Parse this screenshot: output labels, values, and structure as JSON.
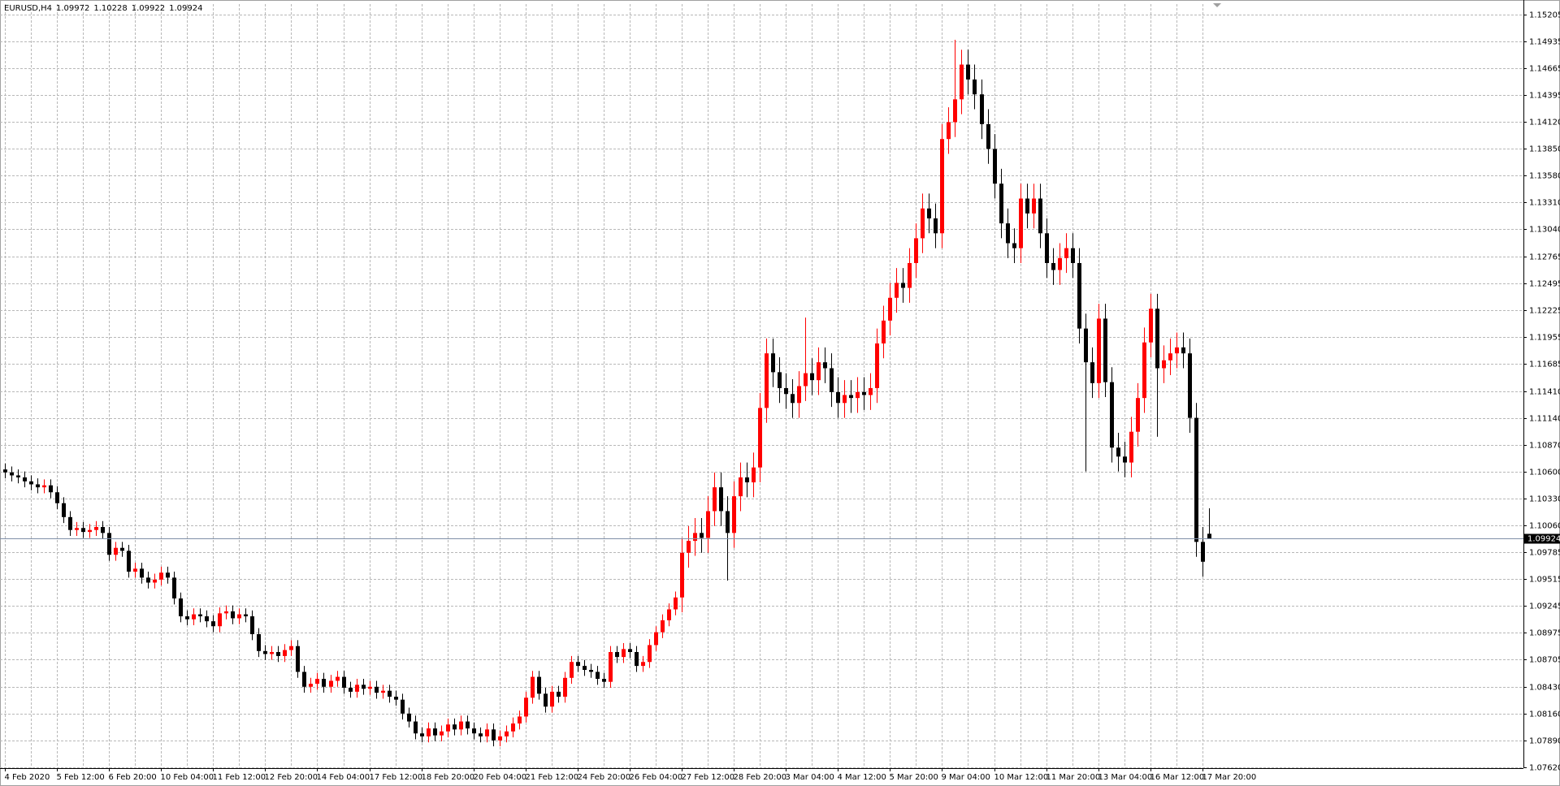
{
  "chart_data": {
    "type": "candlestick",
    "title": "EURUSD,H4",
    "categories": [
      "4 Feb 2020",
      null,
      null,
      null,
      null,
      null,
      null,
      null,
      "5 Feb 12:00",
      null,
      null,
      null,
      null,
      null,
      null,
      null,
      "6 Feb 20:00",
      null,
      null,
      null,
      null,
      null,
      null,
      null,
      "10 Feb 04:00",
      null,
      null,
      null,
      null,
      null,
      null,
      null,
      "11 Feb 12:00",
      null,
      null,
      null,
      null,
      null,
      null,
      null,
      "12 Feb 20:00",
      null,
      null,
      null,
      null,
      null,
      null,
      null,
      "14 Feb 04:00",
      null,
      null,
      null,
      null,
      null,
      null,
      null,
      "17 Feb 12:00",
      null,
      null,
      null,
      null,
      null,
      null,
      null,
      "18 Feb 20:00",
      null,
      null,
      null,
      null,
      null,
      null,
      null,
      "20 Feb 04:00",
      null,
      null,
      null,
      null,
      null,
      null,
      null,
      "21 Feb 12:00",
      null,
      null,
      null,
      null,
      null,
      null,
      null,
      "24 Feb 20:00",
      null,
      null,
      null,
      null,
      null,
      null,
      null,
      "26 Feb 04:00",
      null,
      null,
      null,
      null,
      null,
      null,
      null,
      "27 Feb 12:00",
      null,
      null,
      null,
      null,
      null,
      null,
      null,
      "28 Feb 20:00",
      null,
      null,
      null,
      null,
      null,
      null,
      null,
      "3 Mar 04:00",
      null,
      null,
      null,
      null,
      null,
      null,
      null,
      "4 Mar 12:00",
      null,
      null,
      null,
      null,
      null,
      null,
      null,
      "5 Mar 20:00",
      null,
      null,
      null,
      null,
      null,
      null,
      null,
      "9 Mar 04:00",
      null,
      null,
      null,
      null,
      null,
      null,
      null,
      "10 Mar 12:00",
      null,
      null,
      null,
      null,
      null,
      null,
      null,
      "11 Mar 20:00",
      null,
      null,
      null,
      null,
      null,
      null,
      null,
      "13 Mar 04:00",
      null,
      null,
      null,
      null,
      null,
      null,
      null,
      "16 Mar 12:00",
      null,
      null,
      null,
      null,
      null,
      null,
      null,
      "17 Mar 20:00",
      null
    ],
    "open": [
      1.1062,
      1.1059,
      1.1056,
      1.1054,
      1.105,
      1.1047,
      1.1044,
      1.1046,
      1.1039,
      1.1028,
      1.1014,
      1.1001,
      1.1003,
      1.0999,
      1.1001,
      1.1004,
      1.0998,
      1.0976,
      1.0983,
      1.098,
      1.0959,
      1.0962,
      1.0953,
      1.0948,
      1.0951,
      1.0958,
      1.0953,
      1.0932,
      1.0914,
      1.0911,
      1.0916,
      1.0914,
      1.0909,
      1.0904,
      1.0917,
      1.0919,
      1.0912,
      1.0916,
      1.0914,
      1.0896,
      1.0879,
      1.0876,
      1.0878,
      1.0874,
      1.088,
      1.0884,
      1.0858,
      1.0843,
      1.0846,
      1.0851,
      1.0843,
      1.0849,
      1.0853,
      1.0842,
      1.0838,
      1.0845,
      1.0841,
      1.0843,
      1.0837,
      1.0839,
      1.0833,
      1.083,
      1.0816,
      1.0808,
      1.0796,
      1.0793,
      1.0801,
      1.0794,
      1.0798,
      1.0805,
      1.08,
      1.0808,
      1.0801,
      1.0796,
      1.0793,
      1.08,
      1.0789,
      1.0793,
      1.0798,
      1.0806,
      1.0813,
      1.0832,
      1.0853,
      1.0836,
      1.0823,
      1.0838,
      1.0833,
      1.0852,
      1.0868,
      1.0864,
      1.086,
      1.0858,
      1.0851,
      1.0848,
      1.0878,
      1.0873,
      1.0881,
      1.0878,
      1.0864,
      1.0868,
      1.0885,
      1.0898,
      1.091,
      1.0921,
      1.0933,
      1.0978,
      1.099,
      1.0998,
      1.0993,
      1.102,
      1.1044,
      1.102,
      1.0998,
      1.1035,
      1.1054,
      1.1049,
      1.1064,
      1.1124,
      1.1179,
      1.116,
      1.1144,
      1.1138,
      1.1129,
      1.1146,
      1.1159,
      1.1152,
      1.117,
      1.1164,
      1.114,
      1.1129,
      1.1137,
      1.1134,
      1.114,
      1.1137,
      1.1144,
      1.1189,
      1.1212,
      1.1235,
      1.125,
      1.1245,
      1.127,
      1.1295,
      1.1325,
      1.1315,
      1.13,
      1.1395,
      1.1412,
      1.1435,
      1.147,
      1.1455,
      1.144,
      1.141,
      1.1385,
      1.135,
      1.131,
      1.129,
      1.1285,
      1.1335,
      1.132,
      1.1335,
      1.13,
      1.127,
      1.1263,
      1.1275,
      1.1285,
      1.127,
      1.1204,
      1.117,
      1.1149,
      1.1214,
      1.115,
      1.1084,
      1.1075,
      1.1069,
      1.11,
      1.1134,
      1.119,
      1.1224,
      1.1164,
      1.1172,
      1.1179,
      1.1185,
      1.1179,
      1.1114,
      1.0989,
      1.09972
    ],
    "high": [
      1.1068,
      1.1065,
      1.1062,
      1.106,
      1.1056,
      1.1053,
      1.1052,
      1.1052,
      1.1045,
      1.1034,
      1.102,
      1.1009,
      1.1009,
      1.1007,
      1.101,
      1.101,
      1.1004,
      1.0989,
      1.0989,
      1.0986,
      1.0968,
      1.0968,
      1.0959,
      1.0957,
      1.0964,
      1.0964,
      1.0959,
      1.0938,
      1.092,
      1.0922,
      1.0922,
      1.092,
      1.0915,
      1.0923,
      1.0925,
      1.0925,
      1.0922,
      1.0922,
      1.092,
      1.0902,
      1.0885,
      1.0884,
      1.0884,
      1.0886,
      1.089,
      1.089,
      1.0864,
      1.0852,
      1.0857,
      1.0857,
      1.0855,
      1.0859,
      1.0859,
      1.0848,
      1.0851,
      1.0851,
      1.0849,
      1.0849,
      1.0845,
      1.0845,
      1.0839,
      1.0836,
      1.0822,
      1.0814,
      1.0802,
      1.0807,
      1.0807,
      1.0804,
      1.0811,
      1.0811,
      1.0814,
      1.0814,
      1.0807,
      1.0802,
      1.0806,
      1.0806,
      1.0799,
      1.0804,
      1.0812,
      1.0819,
      1.0838,
      1.0859,
      1.0859,
      1.0842,
      1.0844,
      1.0844,
      1.0858,
      1.0874,
      1.0874,
      1.087,
      1.0866,
      1.0864,
      1.0857,
      1.0884,
      1.0884,
      1.0887,
      1.0887,
      1.0884,
      1.0874,
      1.0891,
      1.0904,
      1.0916,
      1.0927,
      1.0939,
      1.0993,
      1.1005,
      1.1013,
      1.1013,
      1.1035,
      1.1059,
      1.1059,
      1.1035,
      1.105,
      1.1069,
      1.1069,
      1.1079,
      1.1139,
      1.1194,
      1.1194,
      1.1175,
      1.1159,
      1.1153,
      1.1161,
      1.1215,
      1.1174,
      1.1185,
      1.1185,
      1.1179,
      1.1155,
      1.1152,
      1.1152,
      1.1155,
      1.1155,
      1.1159,
      1.1204,
      1.1227,
      1.125,
      1.1265,
      1.1265,
      1.1285,
      1.131,
      1.134,
      1.134,
      1.133,
      1.141,
      1.1427,
      1.1495,
      1.1485,
      1.1485,
      1.147,
      1.1455,
      1.1425,
      1.14,
      1.1365,
      1.1325,
      1.1305,
      1.135,
      1.135,
      1.135,
      1.135,
      1.1315,
      1.1285,
      1.129,
      1.13,
      1.13,
      1.1285,
      1.1219,
      1.1185,
      1.1229,
      1.1229,
      1.1165,
      1.1099,
      1.109,
      1.1115,
      1.1149,
      1.1205,
      1.1239,
      1.1239,
      1.1187,
      1.1194,
      1.12,
      1.12,
      1.1194,
      1.1129,
      1.1004,
      1.10228
    ],
    "low": [
      1.1053,
      1.105,
      1.1048,
      1.1044,
      1.1041,
      1.1038,
      1.1038,
      1.1033,
      1.1022,
      1.1008,
      1.0995,
      1.0995,
      1.0993,
      1.0993,
      1.0995,
      1.0992,
      1.097,
      1.097,
      1.0974,
      1.0953,
      1.0953,
      1.0947,
      1.0942,
      1.0942,
      1.0945,
      1.0947,
      1.0926,
      1.0908,
      1.0905,
      1.0905,
      1.0908,
      1.0903,
      1.0898,
      1.0898,
      1.0911,
      1.0906,
      1.0906,
      1.0908,
      1.089,
      1.0873,
      1.087,
      1.087,
      1.0868,
      1.0868,
      1.0874,
      1.0852,
      1.0837,
      1.0837,
      1.084,
      1.0837,
      1.0837,
      1.0843,
      1.0836,
      1.0832,
      1.0832,
      1.0835,
      1.0835,
      1.0831,
      1.0831,
      1.0827,
      1.0824,
      1.081,
      1.0802,
      1.079,
      1.0787,
      1.0787,
      1.0788,
      1.0788,
      1.0792,
      1.0794,
      1.0794,
      1.0795,
      1.079,
      1.0787,
      1.0787,
      1.0783,
      1.0783,
      1.0787,
      1.0792,
      1.08,
      1.0807,
      1.0826,
      1.083,
      1.0817,
      1.0817,
      1.0827,
      1.0827,
      1.0846,
      1.0858,
      1.0854,
      1.0852,
      1.0845,
      1.0842,
      1.0842,
      1.0867,
      1.0867,
      1.0872,
      1.0858,
      1.0858,
      1.0862,
      1.0879,
      1.0892,
      1.0904,
      1.0915,
      1.0918,
      1.0963,
      1.0975,
      1.0978,
      1.0978,
      1.1005,
      1.1005,
      1.095,
      1.0983,
      1.102,
      1.1034,
      1.1034,
      1.1049,
      1.1109,
      1.1145,
      1.1129,
      1.1123,
      1.1114,
      1.1114,
      1.1131,
      1.1137,
      1.1137,
      1.1149,
      1.1125,
      1.1114,
      1.1114,
      1.1119,
      1.1119,
      1.1122,
      1.1122,
      1.1129,
      1.1174,
      1.1197,
      1.122,
      1.123,
      1.123,
      1.1255,
      1.128,
      1.13,
      1.1285,
      1.1285,
      1.138,
      1.1397,
      1.142,
      1.144,
      1.1425,
      1.1395,
      1.137,
      1.1335,
      1.1295,
      1.1275,
      1.127,
      1.127,
      1.1305,
      1.1305,
      1.1285,
      1.1255,
      1.1248,
      1.1248,
      1.126,
      1.1255,
      1.1189,
      1.106,
      1.1134,
      1.1134,
      1.1135,
      1.1069,
      1.106,
      1.1054,
      1.1054,
      1.1085,
      1.1119,
      1.1175,
      1.1095,
      1.1149,
      1.1157,
      1.1164,
      1.1164,
      1.1099,
      1.0974,
      1.0954,
      1.09922
    ],
    "close": [
      1.1059,
      1.1056,
      1.1054,
      1.105,
      1.1047,
      1.1044,
      1.1046,
      1.1039,
      1.1028,
      1.1014,
      1.1001,
      1.1003,
      1.0999,
      1.1001,
      1.1004,
      1.0998,
      1.0976,
      1.0983,
      1.098,
      1.0959,
      1.0962,
      1.0953,
      1.0948,
      1.0951,
      1.0958,
      1.0953,
      1.0932,
      1.0914,
      1.0911,
      1.0916,
      1.0914,
      1.0909,
      1.0904,
      1.0917,
      1.0919,
      1.0912,
      1.0916,
      1.0914,
      1.0896,
      1.0879,
      1.0876,
      1.0878,
      1.0874,
      1.088,
      1.0884,
      1.0858,
      1.0843,
      1.0846,
      1.0851,
      1.0843,
      1.0849,
      1.0853,
      1.0842,
      1.0838,
      1.0845,
      1.0841,
      1.0843,
      1.0837,
      1.0839,
      1.0833,
      1.083,
      1.0816,
      1.0808,
      1.0796,
      1.0793,
      1.0801,
      1.0794,
      1.0798,
      1.0805,
      1.08,
      1.0808,
      1.0801,
      1.0796,
      1.0793,
      1.08,
      1.0789,
      1.0793,
      1.0798,
      1.0806,
      1.0813,
      1.0832,
      1.0853,
      1.0836,
      1.0823,
      1.0838,
      1.0833,
      1.0852,
      1.0868,
      1.0864,
      1.086,
      1.0858,
      1.0851,
      1.0848,
      1.0878,
      1.0873,
      1.0881,
      1.0878,
      1.0864,
      1.0868,
      1.0885,
      1.0898,
      1.091,
      1.0921,
      1.0933,
      1.0978,
      1.099,
      1.0998,
      1.0993,
      1.102,
      1.1044,
      1.102,
      1.0998,
      1.1035,
      1.1054,
      1.1049,
      1.1064,
      1.1124,
      1.1179,
      1.116,
      1.1144,
      1.1138,
      1.1129,
      1.1146,
      1.1159,
      1.1152,
      1.117,
      1.1164,
      1.114,
      1.1129,
      1.1137,
      1.1134,
      1.114,
      1.1137,
      1.1144,
      1.1189,
      1.1212,
      1.1235,
      1.125,
      1.1245,
      1.127,
      1.1295,
      1.1325,
      1.1315,
      1.13,
      1.1395,
      1.1412,
      1.1435,
      1.147,
      1.1455,
      1.144,
      1.141,
      1.1385,
      1.135,
      1.131,
      1.129,
      1.1285,
      1.1335,
      1.132,
      1.1335,
      1.13,
      1.127,
      1.1263,
      1.1275,
      1.1285,
      1.127,
      1.1204,
      1.117,
      1.1149,
      1.1214,
      1.115,
      1.1084,
      1.1075,
      1.1069,
      1.11,
      1.1134,
      1.119,
      1.1224,
      1.1164,
      1.1172,
      1.1179,
      1.1185,
      1.1179,
      1.1114,
      1.0989,
      1.0969,
      1.09924
    ],
    "ylim": [
      1.0761,
      1.1531
    ],
    "yticks": [
      1.15205,
      1.14935,
      1.14665,
      1.14395,
      {
        "value": 1.1412,
        "label": "1.14120"
      },
      {
        "value": 1.1385,
        "label": "1.13850"
      },
      {
        "value": 1.1358,
        "label": "1.13580"
      },
      {
        "value": 1.1331,
        "label": "1.13310"
      },
      {
        "value": 1.1304,
        "label": "1.13040"
      },
      1.12765,
      1.12495,
      1.12225,
      1.11955,
      1.11685,
      {
        "value": 1.1141,
        "label": "1.11410"
      },
      {
        "value": 1.1114,
        "label": "1.11140"
      },
      {
        "value": 1.1087,
        "label": "1.10870"
      },
      {
        "value": 1.106,
        "label": "1.10600"
      },
      {
        "value": 1.1033,
        "label": "1.10330"
      },
      {
        "value": 1.1006,
        "label": "1.10060"
      },
      1.09785,
      1.09515,
      1.09245,
      1.08975,
      1.08705,
      {
        "value": 1.0843,
        "label": "1.08430"
      },
      {
        "value": 1.0816,
        "label": "1.08160"
      },
      {
        "value": 1.0789,
        "label": "1.07890"
      },
      {
        "value": 1.0762,
        "label": "1.07620"
      }
    ],
    "grid": true,
    "up_color": "#ff0000",
    "down_color": "#000000"
  }
}
